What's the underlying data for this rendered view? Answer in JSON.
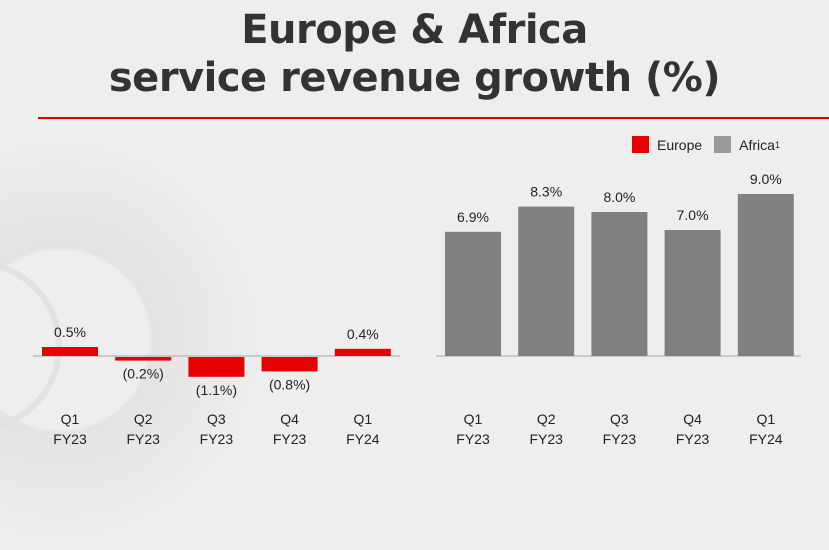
{
  "title_line1": "Europe & Africa",
  "title_line2": "service revenue growth (%)",
  "legend": [
    {
      "label": "Europe",
      "color": "#e60000"
    },
    {
      "label": "Africa",
      "superscript": "1",
      "color": "#808080"
    }
  ],
  "chart_data": [
    {
      "type": "bar",
      "series_name": "Europe",
      "color": "#e60000",
      "categories": [
        [
          "Q1",
          "FY23"
        ],
        [
          "Q2",
          "FY23"
        ],
        [
          "Q3",
          "FY23"
        ],
        [
          "Q4",
          "FY23"
        ],
        [
          "Q1",
          "FY24"
        ]
      ],
      "values": [
        0.5,
        -0.2,
        -1.1,
        -0.8,
        0.4
      ],
      "labels": [
        "0.5%",
        "(0.2%)",
        "(1.1%)",
        "(0.8%)",
        "0.4%"
      ],
      "grid": false
    },
    {
      "type": "bar",
      "series_name": "Africa",
      "color": "#808080",
      "categories": [
        [
          "Q1",
          "FY23"
        ],
        [
          "Q2",
          "FY23"
        ],
        [
          "Q3",
          "FY23"
        ],
        [
          "Q4",
          "FY23"
        ],
        [
          "Q1",
          "FY24"
        ]
      ],
      "values": [
        6.9,
        8.3,
        8.0,
        7.0,
        9.0
      ],
      "labels": [
        "6.9%",
        "8.3%",
        "8.0%",
        "7.0%",
        "9.0%"
      ],
      "grid": false
    }
  ]
}
